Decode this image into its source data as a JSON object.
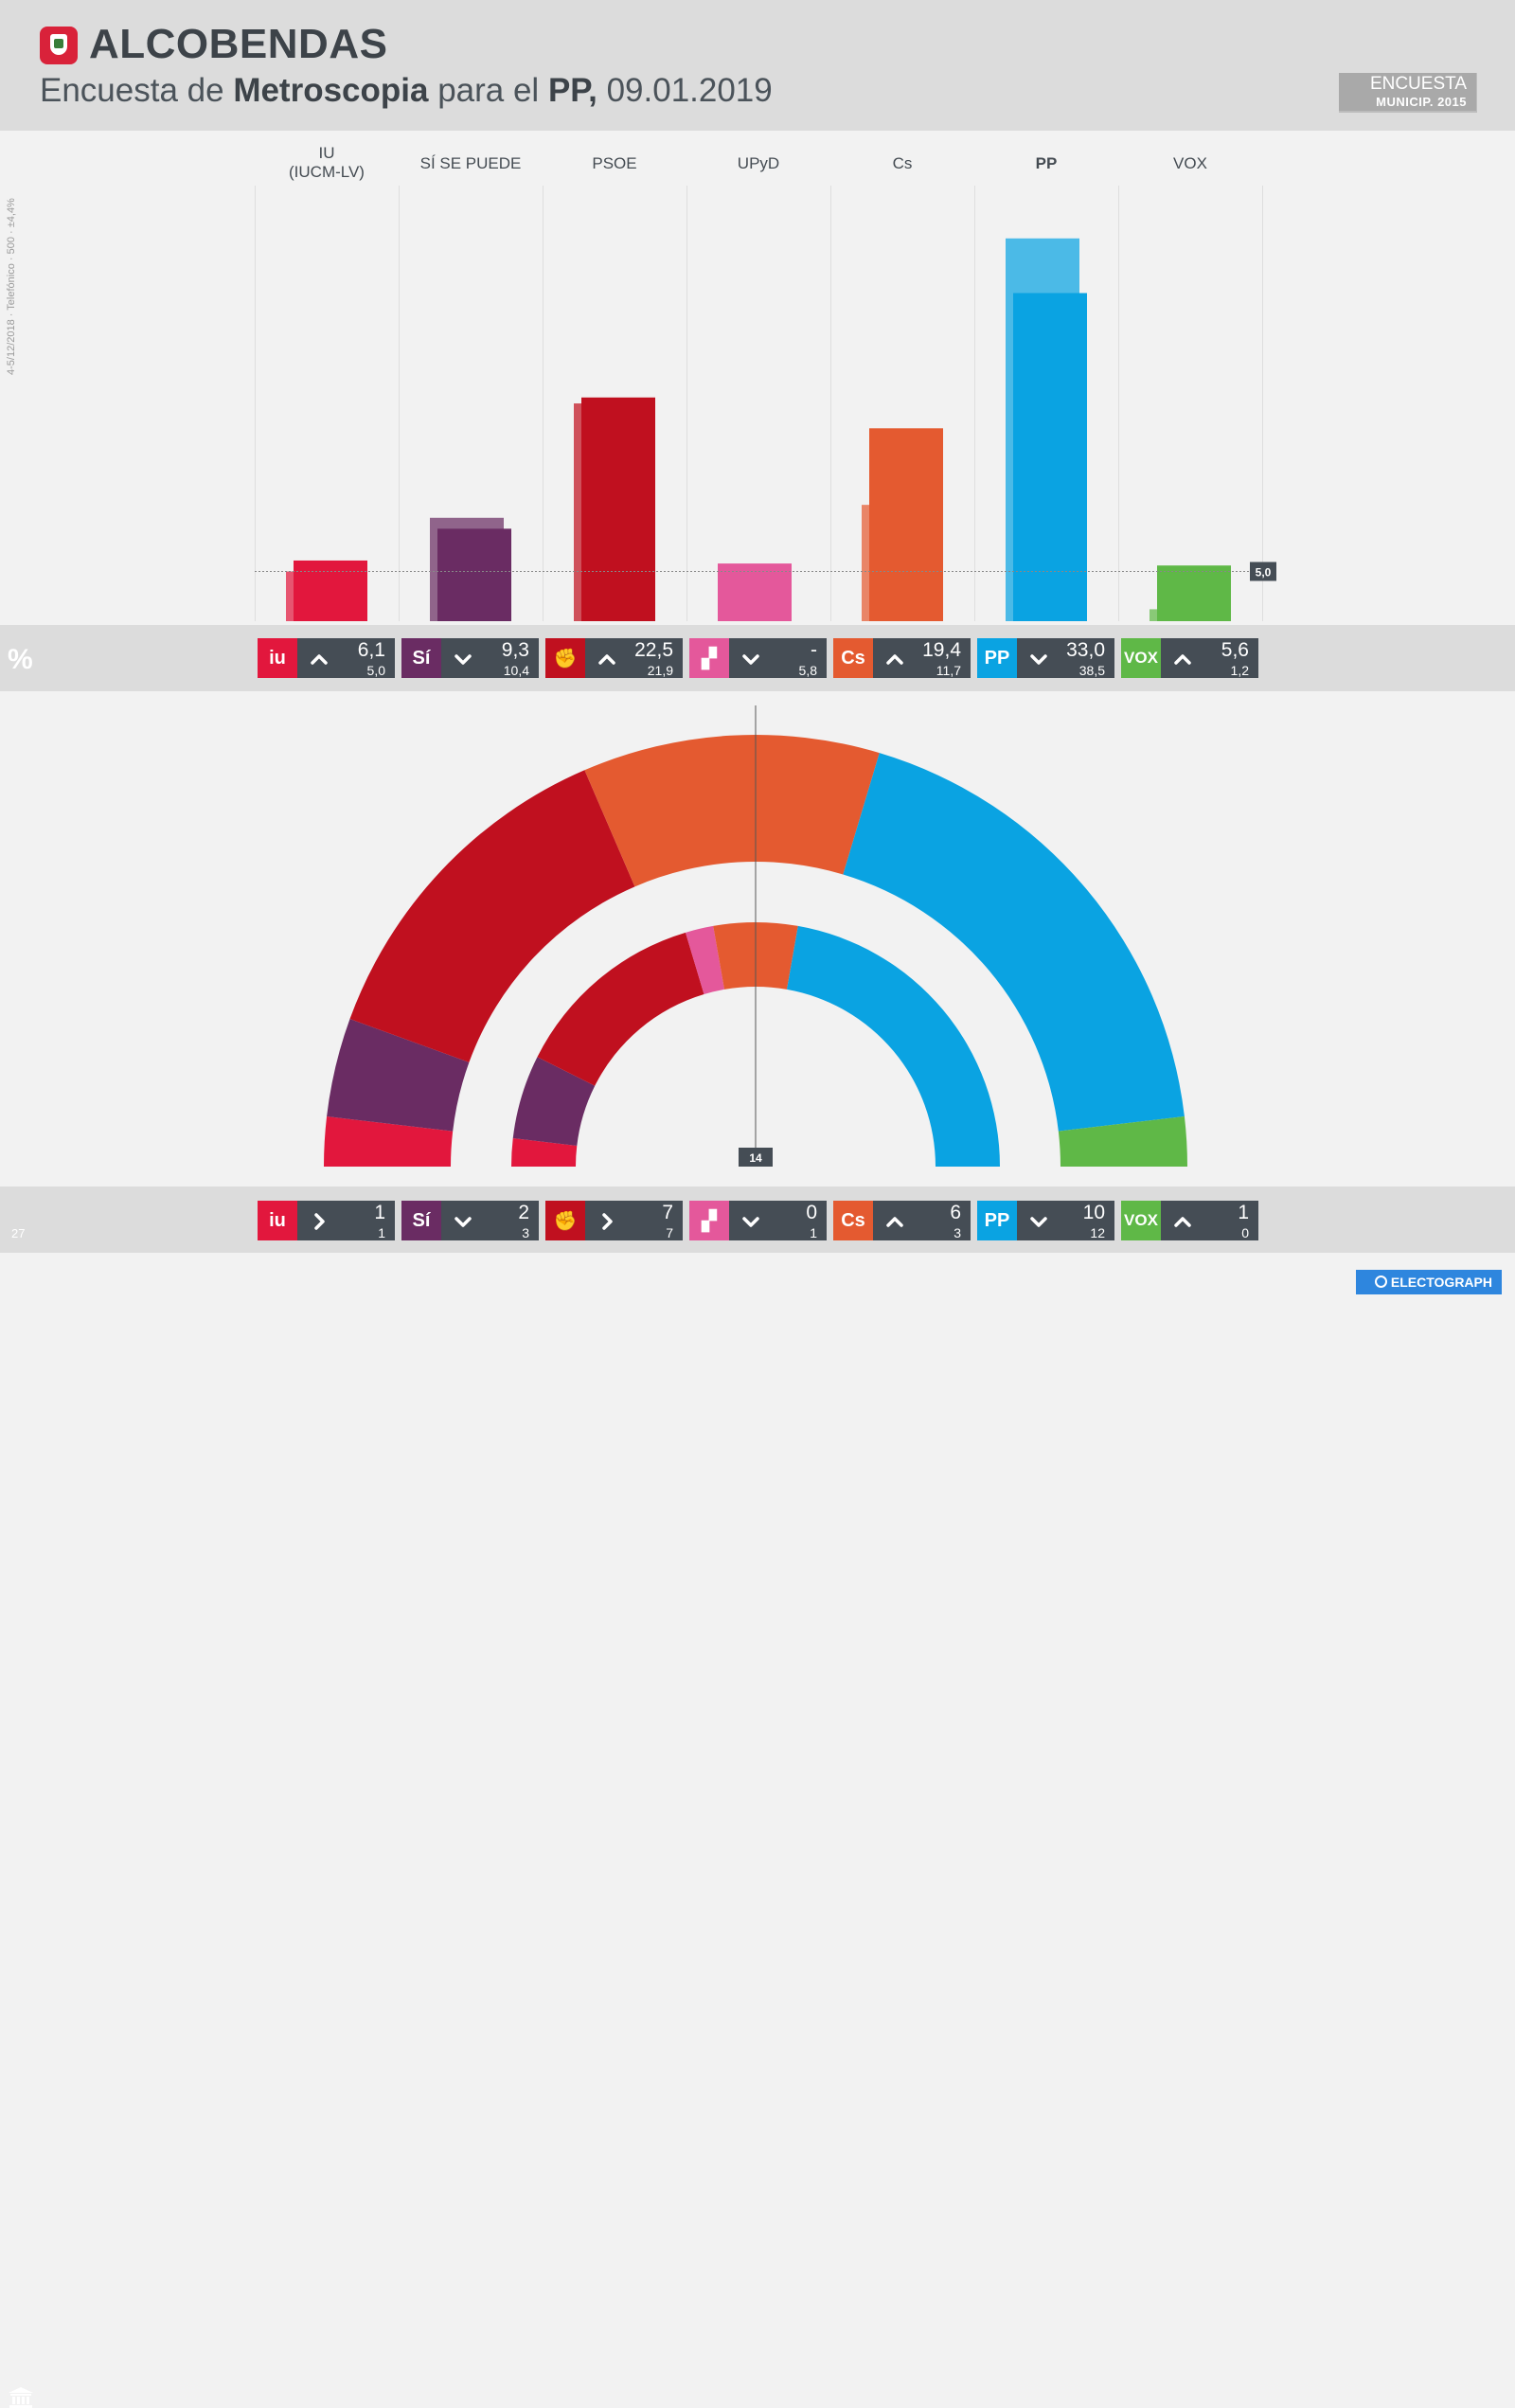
{
  "header": {
    "title": "ALCOBENDAS",
    "subtitle_1": "Encuesta de ",
    "subtitle_2": "Metroscopia",
    "subtitle_3": " para el ",
    "subtitle_4": "PP,",
    "subtitle_5": " 09.01.2019",
    "legend_front": "ENCUESTA",
    "legend_back": "MUNICIP. 2015"
  },
  "sidenote": "4-5/12/2018 · Telefónico · 500 · ±4,4%",
  "percent_label": "%",
  "threshold": {
    "label": "5,0",
    "value": 5.0
  },
  "seats_total": "27",
  "hemicycle_center": "14",
  "brand": "ELECTOGRAPH",
  "colors": {
    "IU": "#e2173d",
    "SI": "#6a2c63",
    "PSOE": "#c0101f",
    "UPyD": "#e4589b",
    "Cs": "#e45a30",
    "PP": "#0aa3e2",
    "VOX": "#5fb847"
  },
  "chart_data": {
    "type": "bar",
    "ylim": [
      0,
      40
    ],
    "categories": [
      "IU\n(IUCM-LV)",
      "SÍ SE PUEDE",
      "PSOE",
      "UPyD",
      "Cs",
      "PP",
      "VOX"
    ],
    "series": [
      {
        "name": "ENCUESTA",
        "values": [
          6.1,
          9.3,
          22.5,
          null,
          19.4,
          33.0,
          5.6
        ]
      },
      {
        "name": "MUNICIP. 2015",
        "values": [
          5.0,
          10.4,
          21.9,
          5.8,
          11.7,
          38.5,
          1.2
        ]
      }
    ],
    "seats": [
      {
        "name": "ENCUESTA",
        "values": [
          1,
          2,
          7,
          0,
          6,
          10,
          1
        ]
      },
      {
        "name": "MUNICIP. 2015",
        "values": [
          1,
          3,
          7,
          1,
          3,
          12,
          0
        ]
      }
    ]
  },
  "parties": [
    {
      "key": "IU",
      "label": "IU\n(IUCM-LV)",
      "bold": false,
      "logo_text": "iu",
      "pct": "6,1",
      "pct_prev": "5,0",
      "pct_trend": "up",
      "seats": "1",
      "seats_prev": "1",
      "seats_trend": "right"
    },
    {
      "key": "SI",
      "label": "SÍ SE PUEDE",
      "bold": false,
      "logo_text": "Sí",
      "pct": "9,3",
      "pct_prev": "10,4",
      "pct_trend": "down",
      "seats": "2",
      "seats_prev": "3",
      "seats_trend": "down"
    },
    {
      "key": "PSOE",
      "label": "PSOE",
      "bold": false,
      "logo_text": "✊",
      "pct": "22,5",
      "pct_prev": "21,9",
      "pct_trend": "up",
      "seats": "7",
      "seats_prev": "7",
      "seats_trend": "right"
    },
    {
      "key": "UPyD",
      "label": "UPyD",
      "bold": false,
      "logo_text": "▞",
      "pct": "-",
      "pct_prev": "5,8",
      "pct_trend": "down",
      "seats": "0",
      "seats_prev": "1",
      "seats_trend": "down"
    },
    {
      "key": "Cs",
      "label": "Cs",
      "bold": false,
      "logo_text": "Cs",
      "pct": "19,4",
      "pct_prev": "11,7",
      "pct_trend": "up",
      "seats": "6",
      "seats_prev": "3",
      "seats_trend": "up"
    },
    {
      "key": "PP",
      "label": "PP",
      "bold": true,
      "logo_text": "PP",
      "pct": "33,0",
      "pct_prev": "38,5",
      "pct_trend": "down",
      "seats": "10",
      "seats_prev": "12",
      "seats_trend": "down"
    },
    {
      "key": "VOX",
      "label": "VOX",
      "bold": false,
      "logo_text": "VOX",
      "pct": "5,6",
      "pct_prev": "1,2",
      "pct_trend": "up",
      "seats": "1",
      "seats_prev": "0",
      "seats_trend": "up"
    }
  ]
}
